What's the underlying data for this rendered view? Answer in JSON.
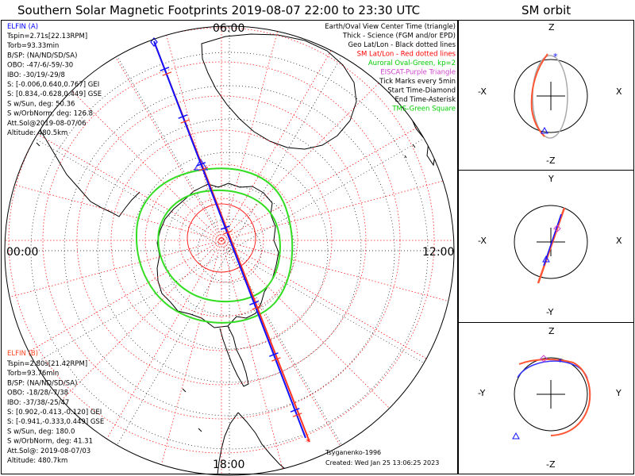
{
  "header": {
    "title": "Southern Solar Magnetic Footprints 2019-08-07 22:00 to 23:30 UTC",
    "orbit_title": "SM orbit"
  },
  "map": {
    "hour_top": "06:00",
    "hour_left": "00:00",
    "hour_right": "12:00",
    "hour_bottom": "18:00",
    "legend": [
      {
        "text": "Earth/Oval View Center Time (triangle)",
        "color": "#000000"
      },
      {
        "text": "Thick - Science (FGM and/or EPD)",
        "color": "#000000"
      },
      {
        "text": "Geo Lat/Lon - Black dotted lines",
        "color": "#000000"
      },
      {
        "text": "SM Lat/Lon - Red dotted lines",
        "color": "#ff0000"
      },
      {
        "text": "Auroral Oval-Green, kp=2",
        "color": "#00cc00"
      },
      {
        "text": "EISCAT-Purple Triangle",
        "color": "#cc44cc"
      },
      {
        "text": "Tick Marks every 5min",
        "color": "#000000"
      },
      {
        "text": "Start Time-Diamond",
        "color": "#000000"
      },
      {
        "text": "End Time-Asterisk",
        "color": "#000000"
      },
      {
        "text": "TMS-Green Square",
        "color": "#00cc00"
      }
    ],
    "credit_author": "Tsyganenko-1996",
    "credit_created": "Created: Wed Jan 25 13:06:25 2023"
  },
  "probe_a": {
    "name": "ELFIN (A)",
    "color": "#0000ff",
    "lines": [
      "Tspin=2.71s[22.13RPM]",
      "Torb=93.33min",
      "B/SP: (NA/ND/SD/SA)",
      "OBO: -47/-6/-59/-30",
      "IBO: -30/19/-29/8",
      "S: [-0.006,0.640,0.767] GEI",
      "S: [0.834,-0.628,0.449] GSE",
      "S w/Sun, deg: 50.36",
      "S w/OrbNorm, deg: 126.8",
      "Att.Sol@2019-08-07/06",
      "Altitude: 480.5km"
    ]
  },
  "probe_b": {
    "name": "ELFIN (B)",
    "color": "#ff4422",
    "lines": [
      "Tspin=2.80s[21.42RPM]",
      "Torb=93.76min",
      "B/SP: (NA/ND/SD/SA)",
      "OBO: -18/28/-7/38",
      "IBO: -37/38/-25/47",
      "S: [0.902,-0.413,-0.120] GEI",
      "S: [-0.941,-0.333,0.449] GSE",
      "S w/Sun, deg: 180.0",
      "S w/OrbNorm, deg: 41.31",
      "Att.Sol@: 2019-08-07/03",
      "Altitude: 480.7km"
    ]
  },
  "orbit_panels": [
    {
      "top": "Z",
      "bottom": "-Z",
      "left": "-X",
      "right": "X"
    },
    {
      "top": "Y",
      "bottom": "-Y",
      "left": "-X",
      "right": "X"
    },
    {
      "top": "Z",
      "bottom": "-Z",
      "left": "-Y",
      "right": "Y"
    }
  ]
}
